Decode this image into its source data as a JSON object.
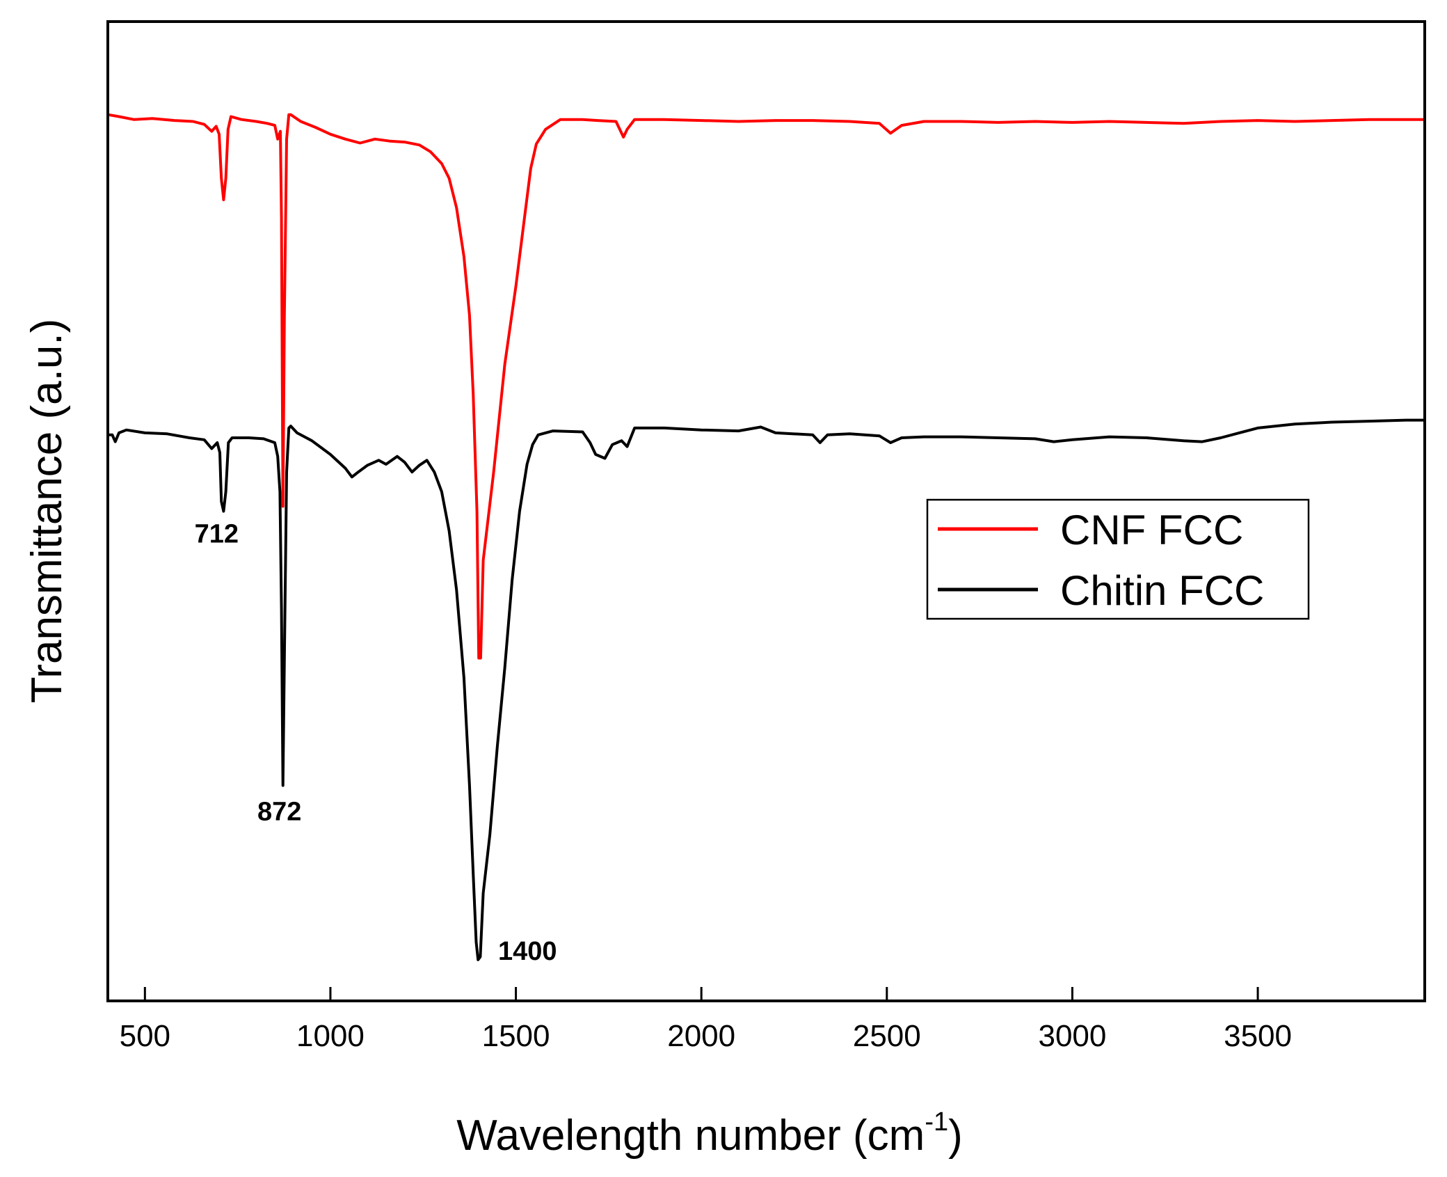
{
  "chart_data": {
    "type": "line",
    "title": "",
    "xlabel_main": "Wavelength number (cm",
    "xlabel_sup": "-1",
    "xlabel_close": ")",
    "ylabel": "Transmittance (a.u.)",
    "xlim": [
      400,
      3950
    ],
    "ylim": [
      0,
      1
    ],
    "xticks": [
      500,
      1000,
      1500,
      2000,
      2500,
      3000,
      3500
    ],
    "yticks_visible": false,
    "legend_position": "center-right",
    "colors": {
      "CNF FCC": "#ff0000",
      "Chitin FCC": "#000000"
    },
    "series": [
      {
        "name": "CNF FCC",
        "color": "#ff0000",
        "points": [
          [
            400,
            0.905
          ],
          [
            430,
            0.903
          ],
          [
            470,
            0.9
          ],
          [
            520,
            0.901
          ],
          [
            580,
            0.899
          ],
          [
            630,
            0.898
          ],
          [
            660,
            0.895
          ],
          [
            680,
            0.888
          ],
          [
            692,
            0.893
          ],
          [
            700,
            0.885
          ],
          [
            706,
            0.84
          ],
          [
            712,
            0.818
          ],
          [
            718,
            0.84
          ],
          [
            724,
            0.89
          ],
          [
            732,
            0.903
          ],
          [
            760,
            0.9
          ],
          [
            800,
            0.898
          ],
          [
            830,
            0.896
          ],
          [
            850,
            0.894
          ],
          [
            858,
            0.88
          ],
          [
            865,
            0.888
          ],
          [
            868,
            0.8
          ],
          [
            872,
            0.505
          ],
          [
            876,
            0.7
          ],
          [
            882,
            0.88
          ],
          [
            888,
            0.905
          ],
          [
            893,
            0.905
          ],
          [
            920,
            0.898
          ],
          [
            960,
            0.892
          ],
          [
            1000,
            0.885
          ],
          [
            1040,
            0.88
          ],
          [
            1080,
            0.876
          ],
          [
            1120,
            0.88
          ],
          [
            1160,
            0.878
          ],
          [
            1200,
            0.877
          ],
          [
            1240,
            0.874
          ],
          [
            1270,
            0.867
          ],
          [
            1300,
            0.855
          ],
          [
            1320,
            0.84
          ],
          [
            1340,
            0.81
          ],
          [
            1360,
            0.76
          ],
          [
            1375,
            0.7
          ],
          [
            1385,
            0.62
          ],
          [
            1395,
            0.5
          ],
          [
            1400,
            0.35
          ],
          [
            1405,
            0.35
          ],
          [
            1412,
            0.45
          ],
          [
            1440,
            0.54
          ],
          [
            1470,
            0.65
          ],
          [
            1500,
            0.73
          ],
          [
            1520,
            0.79
          ],
          [
            1540,
            0.85
          ],
          [
            1555,
            0.875
          ],
          [
            1580,
            0.89
          ],
          [
            1620,
            0.9
          ],
          [
            1680,
            0.9
          ],
          [
            1720,
            0.899
          ],
          [
            1770,
            0.898
          ],
          [
            1790,
            0.882
          ],
          [
            1800,
            0.89
          ],
          [
            1820,
            0.9
          ],
          [
            1900,
            0.9
          ],
          [
            2000,
            0.899
          ],
          [
            2100,
            0.898
          ],
          [
            2200,
            0.899
          ],
          [
            2300,
            0.899
          ],
          [
            2400,
            0.898
          ],
          [
            2480,
            0.896
          ],
          [
            2510,
            0.886
          ],
          [
            2540,
            0.894
          ],
          [
            2600,
            0.898
          ],
          [
            2700,
            0.898
          ],
          [
            2800,
            0.897
          ],
          [
            2900,
            0.898
          ],
          [
            3000,
            0.897
          ],
          [
            3100,
            0.898
          ],
          [
            3200,
            0.897
          ],
          [
            3300,
            0.896
          ],
          [
            3400,
            0.898
          ],
          [
            3500,
            0.899
          ],
          [
            3600,
            0.898
          ],
          [
            3700,
            0.899
          ],
          [
            3800,
            0.9
          ],
          [
            3900,
            0.9
          ],
          [
            3950,
            0.9
          ]
        ]
      },
      {
        "name": "Chitin FCC",
        "color": "#000000",
        "points": [
          [
            400,
            0.578
          ],
          [
            412,
            0.578
          ],
          [
            420,
            0.571
          ],
          [
            430,
            0.58
          ],
          [
            450,
            0.583
          ],
          [
            500,
            0.58
          ],
          [
            560,
            0.579
          ],
          [
            620,
            0.575
          ],
          [
            660,
            0.573
          ],
          [
            680,
            0.564
          ],
          [
            695,
            0.57
          ],
          [
            702,
            0.56
          ],
          [
            706,
            0.51
          ],
          [
            712,
            0.5
          ],
          [
            718,
            0.52
          ],
          [
            725,
            0.57
          ],
          [
            735,
            0.575
          ],
          [
            780,
            0.575
          ],
          [
            820,
            0.574
          ],
          [
            850,
            0.57
          ],
          [
            858,
            0.556
          ],
          [
            864,
            0.52
          ],
          [
            868,
            0.4
          ],
          [
            872,
            0.22
          ],
          [
            876,
            0.35
          ],
          [
            882,
            0.54
          ],
          [
            888,
            0.585
          ],
          [
            893,
            0.587
          ],
          [
            910,
            0.58
          ],
          [
            950,
            0.572
          ],
          [
            1000,
            0.558
          ],
          [
            1040,
            0.544
          ],
          [
            1058,
            0.535
          ],
          [
            1075,
            0.54
          ],
          [
            1100,
            0.547
          ],
          [
            1130,
            0.552
          ],
          [
            1150,
            0.548
          ],
          [
            1180,
            0.556
          ],
          [
            1200,
            0.55
          ],
          [
            1220,
            0.54
          ],
          [
            1240,
            0.547
          ],
          [
            1260,
            0.552
          ],
          [
            1280,
            0.54
          ],
          [
            1300,
            0.52
          ],
          [
            1320,
            0.48
          ],
          [
            1340,
            0.42
          ],
          [
            1360,
            0.33
          ],
          [
            1375,
            0.22
          ],
          [
            1385,
            0.13
          ],
          [
            1393,
            0.06
          ],
          [
            1398,
            0.042
          ],
          [
            1404,
            0.045
          ],
          [
            1412,
            0.11
          ],
          [
            1430,
            0.17
          ],
          [
            1450,
            0.26
          ],
          [
            1470,
            0.34
          ],
          [
            1490,
            0.43
          ],
          [
            1510,
            0.5
          ],
          [
            1530,
            0.548
          ],
          [
            1545,
            0.568
          ],
          [
            1560,
            0.578
          ],
          [
            1600,
            0.582
          ],
          [
            1680,
            0.581
          ],
          [
            1700,
            0.57
          ],
          [
            1715,
            0.558
          ],
          [
            1740,
            0.554
          ],
          [
            1760,
            0.568
          ],
          [
            1785,
            0.572
          ],
          [
            1800,
            0.566
          ],
          [
            1820,
            0.585
          ],
          [
            1900,
            0.585
          ],
          [
            2000,
            0.583
          ],
          [
            2100,
            0.582
          ],
          [
            2160,
            0.586
          ],
          [
            2200,
            0.58
          ],
          [
            2300,
            0.578
          ],
          [
            2320,
            0.57
          ],
          [
            2340,
            0.578
          ],
          [
            2400,
            0.579
          ],
          [
            2480,
            0.577
          ],
          [
            2510,
            0.57
          ],
          [
            2540,
            0.575
          ],
          [
            2600,
            0.576
          ],
          [
            2700,
            0.576
          ],
          [
            2800,
            0.575
          ],
          [
            2900,
            0.574
          ],
          [
            2950,
            0.571
          ],
          [
            3000,
            0.573
          ],
          [
            3100,
            0.576
          ],
          [
            3200,
            0.575
          ],
          [
            3300,
            0.572
          ],
          [
            3350,
            0.571
          ],
          [
            3400,
            0.575
          ],
          [
            3500,
            0.585
          ],
          [
            3600,
            0.589
          ],
          [
            3700,
            0.591
          ],
          [
            3800,
            0.592
          ],
          [
            3900,
            0.593
          ],
          [
            3950,
            0.593
          ]
        ]
      }
    ],
    "annotations": [
      {
        "text": "712",
        "x": 712,
        "series": "Chitin FCC"
      },
      {
        "text": "872",
        "x": 872,
        "series": "Chitin FCC"
      },
      {
        "text": "1400",
        "x": 1400,
        "series": "Chitin FCC"
      }
    ]
  }
}
